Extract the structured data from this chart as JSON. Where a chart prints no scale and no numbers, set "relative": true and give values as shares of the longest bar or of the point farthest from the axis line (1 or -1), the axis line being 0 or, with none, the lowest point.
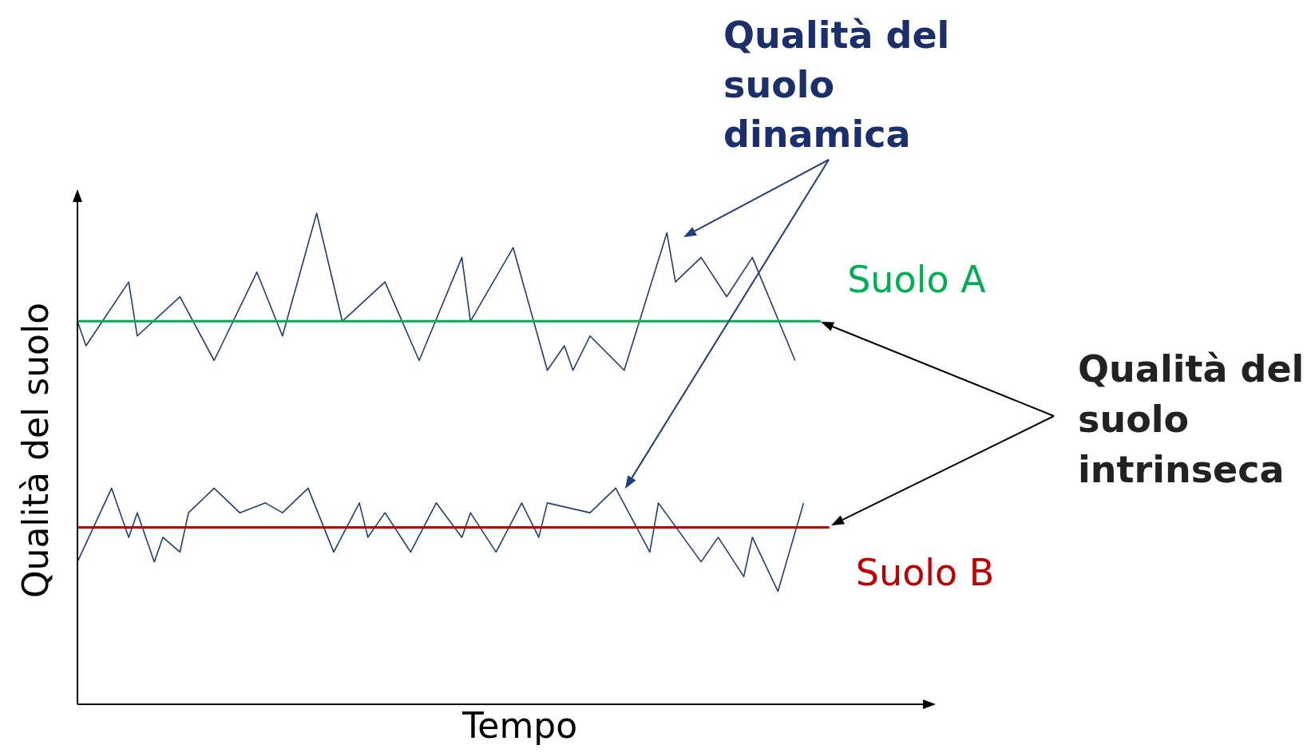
{
  "chart_data": {
    "type": "line",
    "relative": true,
    "xlabel": "Tempo",
    "ylabel": "Qualità del suolo",
    "marker": "none",
    "line_style": "solid",
    "annotations": [
      "Qualità del suolo dinamica",
      "Qualità del suolo intrinseca"
    ],
    "categories": [
      null,
      null,
      null,
      null,
      null,
      null,
      null,
      null,
      null,
      null,
      null,
      null,
      null,
      null,
      null,
      null,
      null,
      null,
      null,
      null,
      null,
      null,
      null,
      null,
      null,
      null,
      null,
      null,
      null,
      null,
      null,
      null,
      null,
      null,
      null,
      null,
      null,
      null,
      null,
      null,
      null,
      null,
      null,
      null,
      null,
      null,
      null,
      null,
      null,
      null,
      null,
      null,
      null,
      null,
      null,
      null,
      null,
      null,
      null,
      null,
      null,
      null,
      null,
      null,
      null,
      null,
      null,
      null,
      null,
      null,
      null,
      null,
      null,
      null,
      null,
      null,
      null,
      null,
      null,
      null,
      null,
      null,
      null,
      null,
      null,
      null,
      null,
      null,
      null
    ],
    "series": [
      {
        "color": "#1f3d7a",
        "values": [
          0.78,
          0.73,
          null,
          null,
          null,
          null,
          0.86,
          0.75,
          null,
          null,
          null,
          null,
          0.83,
          null,
          null,
          null,
          0.7,
          null,
          null,
          null,
          null,
          0.88,
          null,
          null,
          0.75,
          null,
          null,
          null,
          1.0,
          null,
          null,
          0.78,
          null,
          null,
          null,
          null,
          0.86,
          null,
          null,
          null,
          0.7,
          null,
          null,
          null,
          null,
          0.91,
          0.78,
          null,
          null,
          null,
          null,
          0.93,
          null,
          null,
          null,
          0.68,
          null,
          0.73,
          0.68,
          null,
          0.75,
          null,
          null,
          null,
          0.68,
          null,
          null,
          null,
          null,
          0.96,
          0.86,
          null,
          null,
          0.91,
          null,
          null,
          0.83,
          null,
          null,
          0.91,
          null,
          null,
          null,
          null,
          0.7,
          null,
          null,
          null,
          null
        ]
      },
      {
        "color": "#1f3d7a",
        "values": [
          0.29,
          null,
          null,
          null,
          0.44,
          null,
          0.34,
          0.39,
          null,
          0.29,
          0.34,
          null,
          0.31,
          0.39,
          null,
          null,
          0.44,
          null,
          null,
          0.39,
          null,
          null,
          0.41,
          null,
          0.39,
          null,
          null,
          0.44,
          null,
          null,
          0.31,
          null,
          null,
          0.41,
          0.34,
          null,
          0.39,
          null,
          null,
          0.31,
          null,
          null,
          0.41,
          null,
          null,
          0.34,
          0.39,
          null,
          null,
          0.31,
          null,
          null,
          0.41,
          null,
          0.34,
          0.41,
          null,
          null,
          null,
          null,
          0.39,
          null,
          null,
          0.44,
          null,
          null,
          null,
          0.31,
          0.41,
          null,
          null,
          null,
          null,
          0.29,
          null,
          0.34,
          null,
          null,
          0.26,
          0.34,
          null,
          null,
          0.23,
          null,
          null,
          0.41,
          null,
          null,
          null
        ]
      },
      {
        "name": "Suolo A",
        "color": "#00b050",
        "values": [
          0.78,
          null,
          null,
          null,
          null,
          null,
          null,
          null,
          null,
          null,
          null,
          null,
          null,
          null,
          null,
          null,
          null,
          null,
          null,
          null,
          null,
          null,
          null,
          null,
          null,
          null,
          null,
          null,
          null,
          null,
          null,
          null,
          null,
          null,
          null,
          null,
          null,
          null,
          null,
          null,
          null,
          null,
          null,
          null,
          null,
          null,
          null,
          null,
          null,
          null,
          null,
          null,
          null,
          null,
          null,
          null,
          null,
          null,
          null,
          null,
          null,
          null,
          null,
          null,
          null,
          null,
          null,
          null,
          null,
          null,
          null,
          null,
          null,
          null,
          null,
          null,
          null,
          null,
          null,
          null,
          null,
          null,
          null,
          null,
          null,
          null,
          null,
          0.78,
          null
        ]
      },
      {
        "name": "Suolo B",
        "color": "#c00000",
        "values": [
          0.36,
          null,
          null,
          null,
          null,
          null,
          null,
          null,
          null,
          null,
          null,
          null,
          null,
          null,
          null,
          null,
          null,
          null,
          null,
          null,
          null,
          null,
          null,
          null,
          null,
          null,
          null,
          null,
          null,
          null,
          null,
          null,
          null,
          null,
          null,
          null,
          null,
          null,
          null,
          null,
          null,
          null,
          null,
          null,
          null,
          null,
          null,
          null,
          null,
          null,
          null,
          null,
          null,
          null,
          null,
          null,
          null,
          null,
          null,
          null,
          null,
          null,
          null,
          null,
          null,
          null,
          null,
          null,
          null,
          null,
          null,
          null,
          null,
          null,
          null,
          null,
          null,
          null,
          null,
          null,
          null,
          null,
          null,
          null,
          null,
          null,
          null,
          null,
          0.36
        ]
      }
    ]
  }
}
